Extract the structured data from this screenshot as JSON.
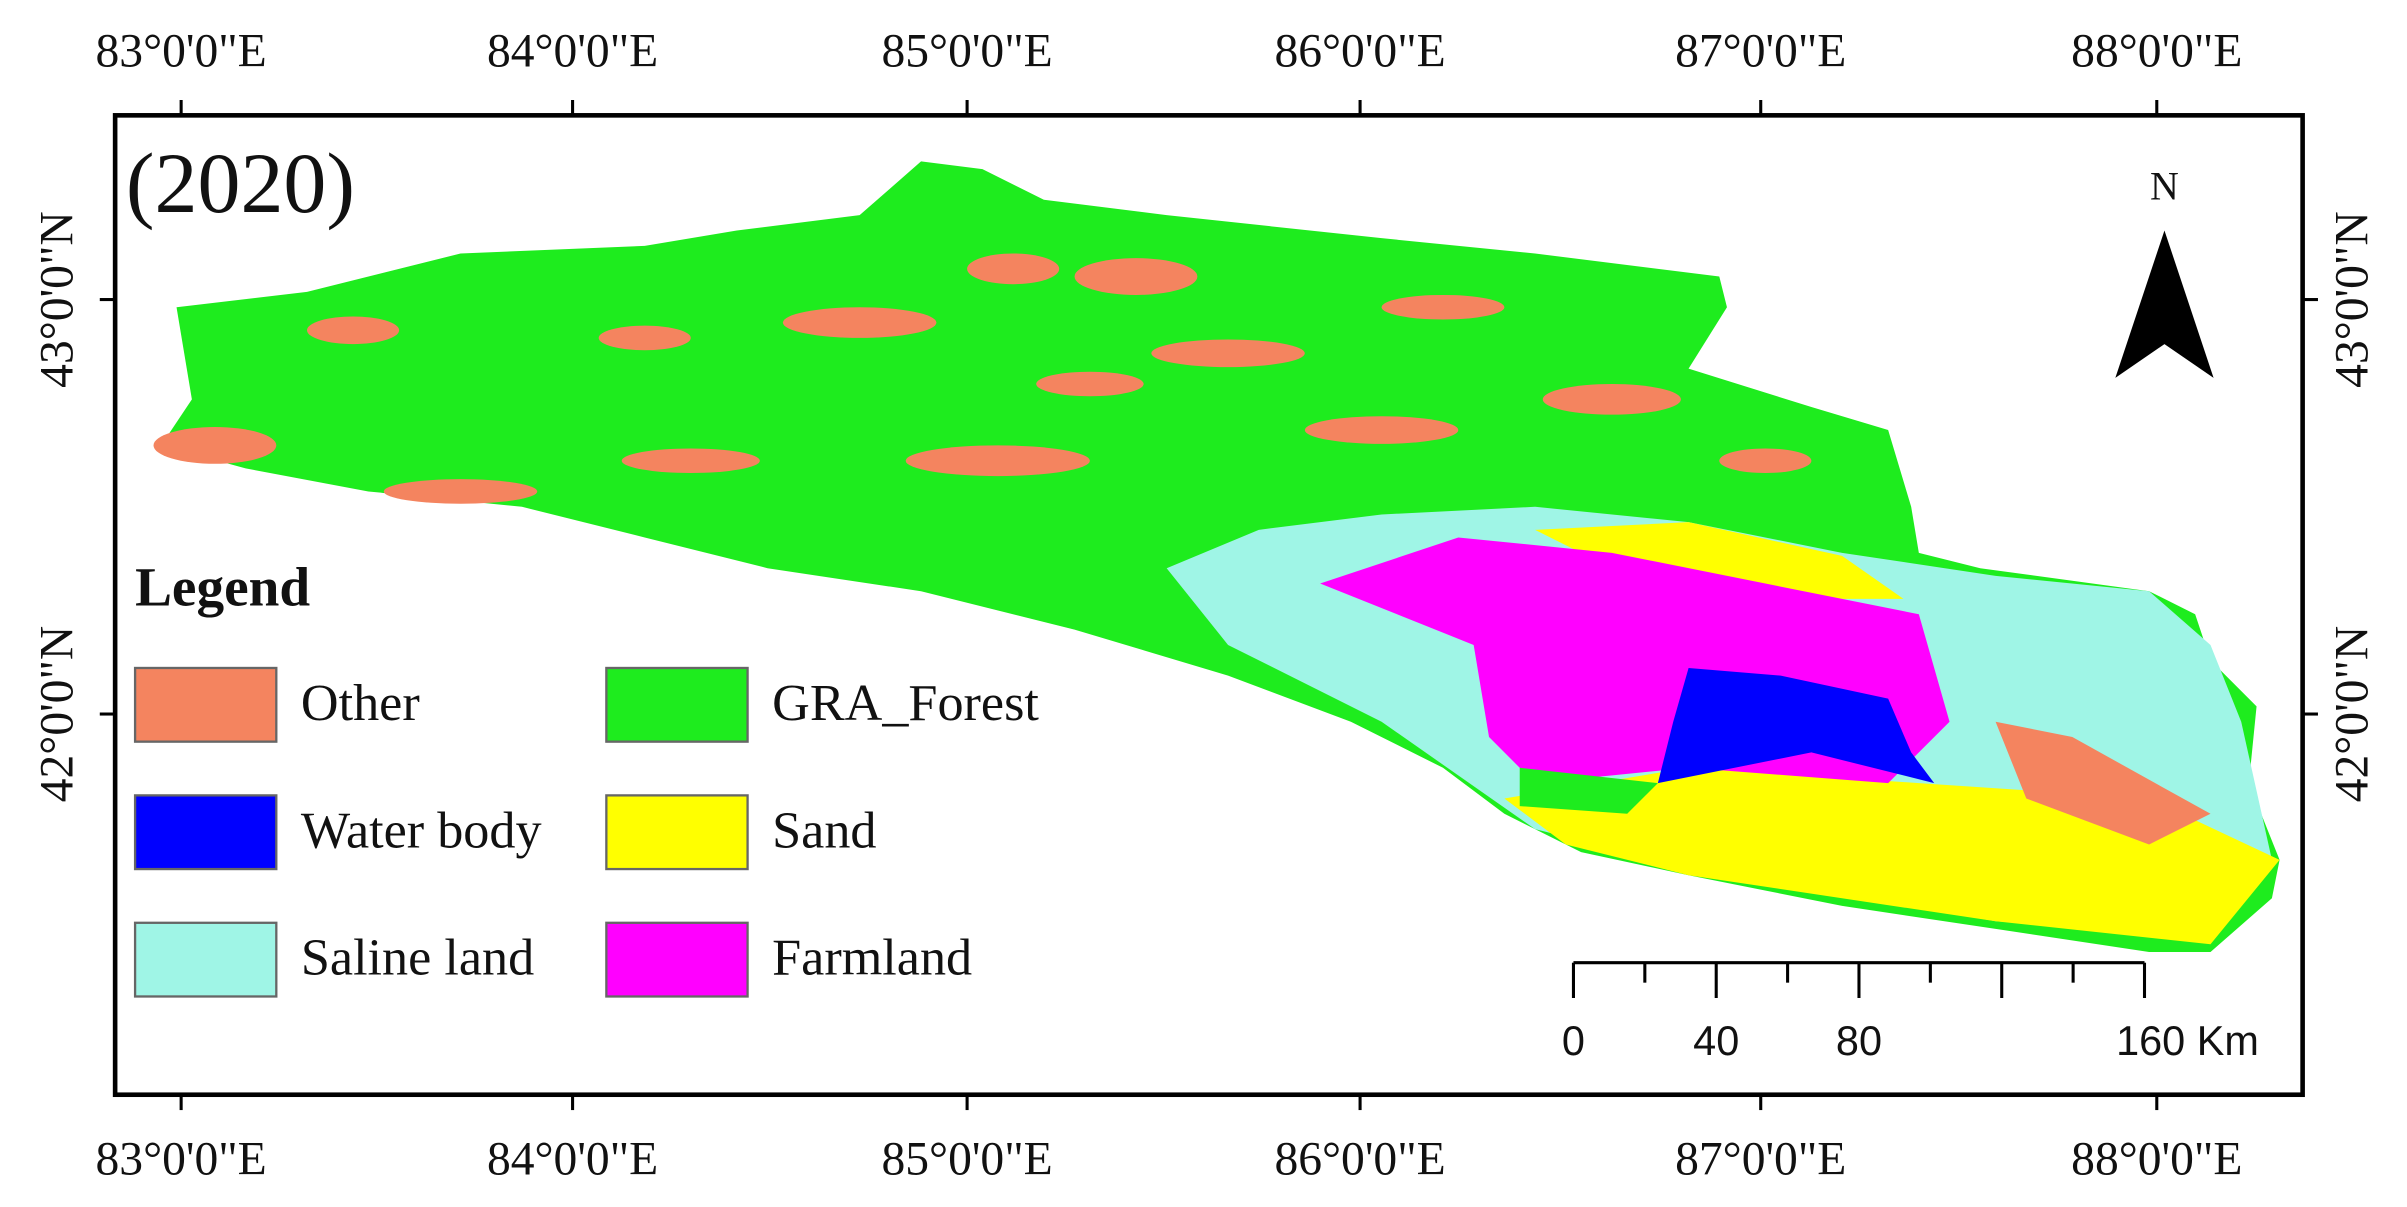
{
  "title": "(2020)",
  "north": "N",
  "longitude_labels_top": [
    "83°0'0\"E",
    "84°0'0\"E",
    "85°0'0\"E",
    "86°0'0\"E",
    "87°0'0\"E",
    "88°0'0\"E"
  ],
  "longitude_labels_bottom": [
    "83°0'0\"E",
    "84°0'0\"E",
    "85°0'0\"E",
    "86°0'0\"E",
    "87°0'0\"E",
    "88°0'0\"E"
  ],
  "latitude_labels_left": [
    "43°0'0\"N",
    "42°0'0\"N"
  ],
  "latitude_labels_right": [
    "43°0'0\"N",
    "42°0'0\"N"
  ],
  "legend": {
    "title": "Legend",
    "items": [
      {
        "label": "Other",
        "color": "#f4845f"
      },
      {
        "label": "Water body",
        "color": "#0000ff"
      },
      {
        "label": "Saline land",
        "color": "#9ff5e6"
      },
      {
        "label": "GRA_Forest",
        "color": "#1eec1e"
      },
      {
        "label": "Sand",
        "color": "#ffff00"
      },
      {
        "label": "Farmland",
        "color": "#ff00ff"
      }
    ]
  },
  "scale_bar": {
    "labels": [
      "0",
      "40",
      "80",
      "160 Km"
    ]
  }
}
